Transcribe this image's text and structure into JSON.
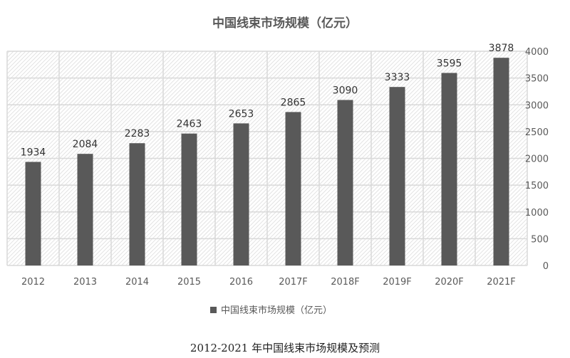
{
  "chart_data": {
    "type": "bar",
    "title": "中国线束市场规模（亿元）",
    "categories": [
      "2012",
      "2013",
      "2014",
      "2015",
      "2016",
      "2017F",
      "2018F",
      "2019F",
      "2020F",
      "2021F"
    ],
    "series": [
      {
        "name": "中国线束市场规模（亿元）",
        "values": [
          1934,
          2084,
          2283,
          2463,
          2653,
          2865,
          3090,
          3333,
          3595,
          3878
        ]
      }
    ],
    "ylim": [
      0,
      4000
    ],
    "yticks": [
      0,
      500,
      1000,
      1500,
      2000,
      2500,
      3000,
      3500,
      4000
    ],
    "y_axis_side": "right",
    "grid": true,
    "legend": "bottom",
    "data_labels": true,
    "bar_color": "#595959",
    "background": "hatched"
  },
  "caption": "2012-2021 年中国线束市场规模及预测"
}
